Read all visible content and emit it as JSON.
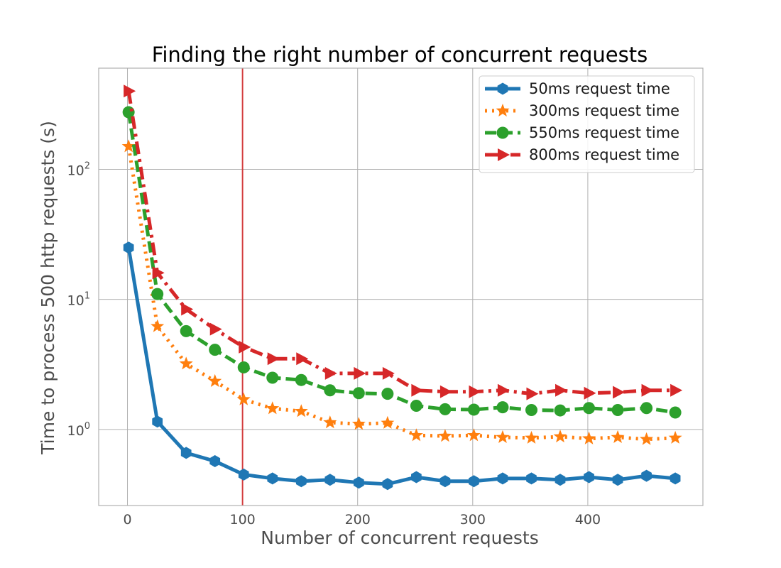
{
  "chart_data": {
    "type": "line",
    "title": "Finding the right number of concurrent requests",
    "xlabel": "Number of concurrent requests",
    "ylabel": "Time to process 500 http requests (s)",
    "xlim": [
      -25,
      500
    ],
    "ylim": [
      0.26,
      600
    ],
    "yscale": "log",
    "grid": true,
    "legend_position": "top-right",
    "x_ticks": [
      0,
      100,
      200,
      300,
      400
    ],
    "y_ticks": [
      {
        "value": 1,
        "base": "10",
        "exp": "0"
      },
      {
        "value": 10,
        "base": "10",
        "exp": "1"
      },
      {
        "value": 100,
        "base": "10",
        "exp": "2"
      }
    ],
    "reference_line": {
      "x": 100,
      "color": "#d62728"
    },
    "x": [
      1,
      26,
      51,
      76,
      101,
      126,
      151,
      176,
      201,
      226,
      251,
      276,
      301,
      326,
      351,
      376,
      401,
      426,
      451,
      476
    ],
    "series": [
      {
        "name": "50ms request time",
        "color": "#1f77b4",
        "dash": "solid",
        "marker": "hexagon",
        "values": [
          25,
          1.15,
          0.66,
          0.57,
          0.45,
          0.42,
          0.4,
          0.41,
          0.39,
          0.38,
          0.43,
          0.4,
          0.4,
          0.42,
          0.42,
          0.41,
          0.43,
          0.41,
          0.44,
          0.42
        ]
      },
      {
        "name": "300ms request time",
        "color": "#ff7f0e",
        "dash": "dotted",
        "marker": "star",
        "values": [
          150,
          6.2,
          3.2,
          2.35,
          1.7,
          1.45,
          1.38,
          1.13,
          1.1,
          1.12,
          0.9,
          0.89,
          0.9,
          0.87,
          0.86,
          0.88,
          0.85,
          0.87,
          0.84,
          0.86
        ]
      },
      {
        "name": "550ms request time",
        "color": "#2ca02c",
        "dash": "dashed",
        "marker": "circle",
        "values": [
          275,
          11,
          5.7,
          4.1,
          3.0,
          2.5,
          2.4,
          2.0,
          1.9,
          1.88,
          1.52,
          1.43,
          1.42,
          1.48,
          1.41,
          1.4,
          1.46,
          1.41,
          1.46,
          1.35
        ]
      },
      {
        "name": "800ms request time",
        "color": "#d62728",
        "dash": "dashdot",
        "marker": "triangle-right",
        "values": [
          400,
          16,
          8.4,
          5.9,
          4.3,
          3.5,
          3.5,
          2.7,
          2.7,
          2.7,
          2.0,
          1.95,
          1.95,
          2.0,
          1.88,
          2.0,
          1.9,
          1.93,
          2.0,
          2.0
        ]
      }
    ]
  }
}
